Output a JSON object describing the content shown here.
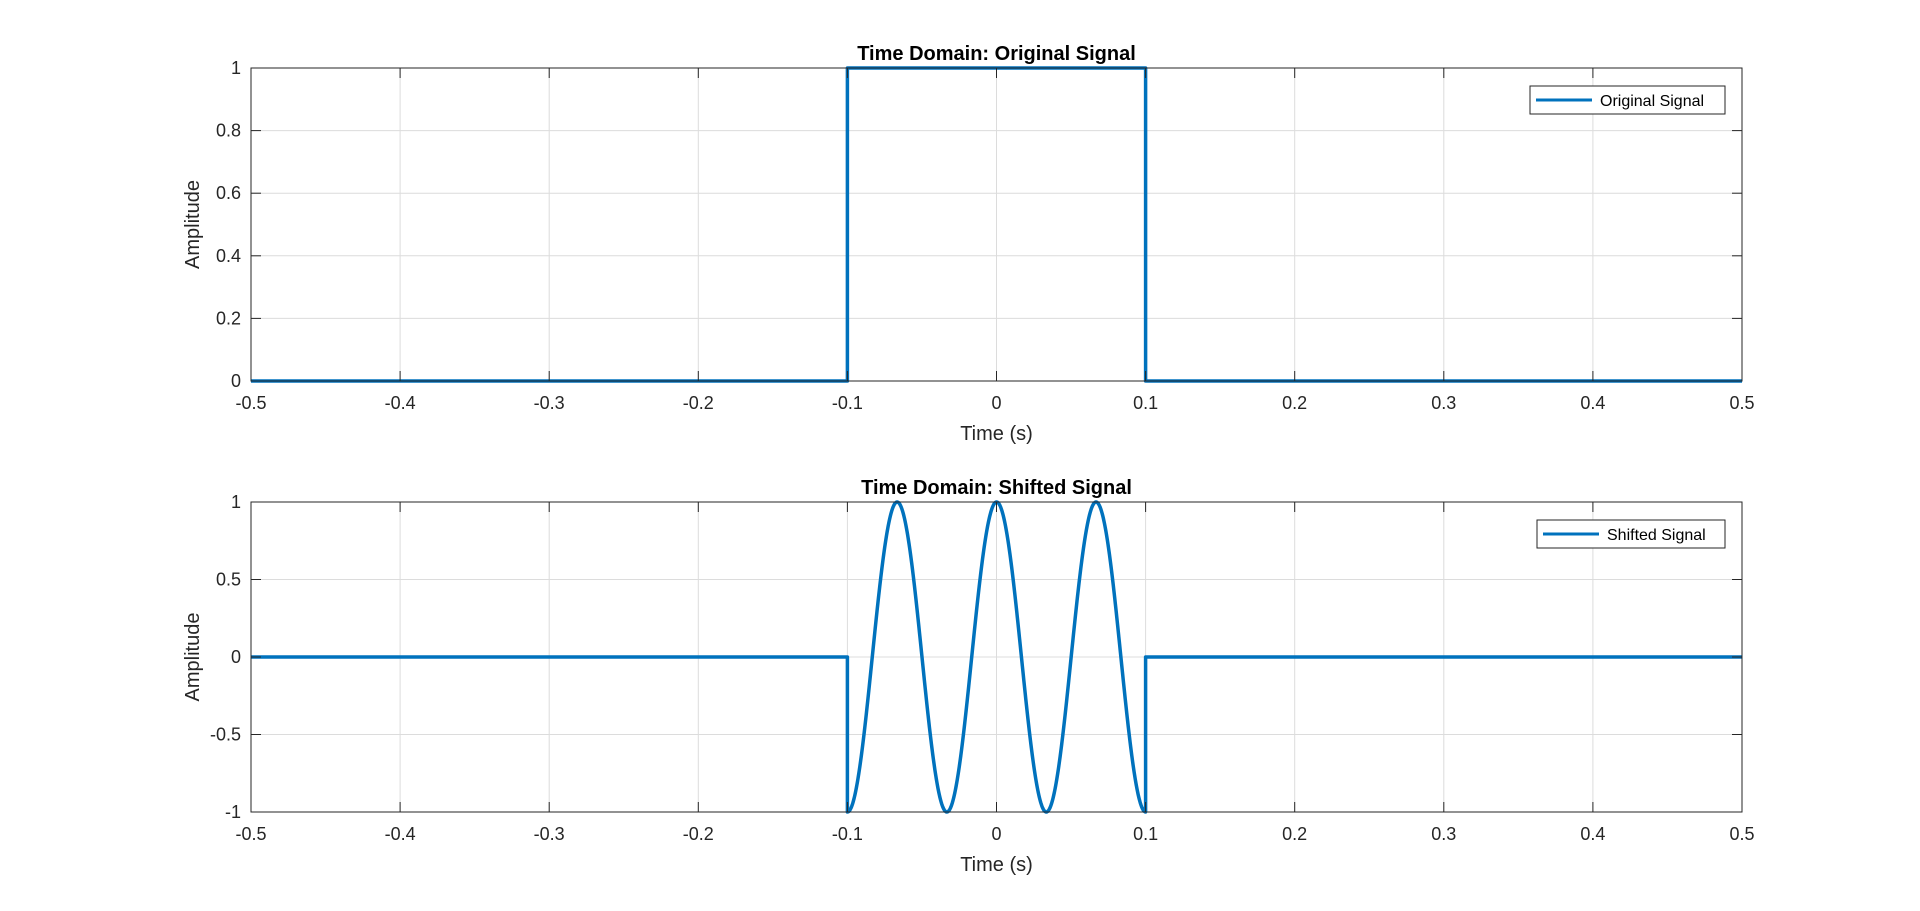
{
  "chart_data": [
    {
      "type": "line",
      "title": "Time Domain: Original Signal",
      "xlabel": "Time (s)",
      "ylabel": "Amplitude",
      "xlim": [
        -0.5,
        0.5
      ],
      "ylim": [
        0,
        1
      ],
      "x_ticks": [
        "-0.5",
        "-0.4",
        "-0.3",
        "-0.2",
        "-0.1",
        "0",
        "0.1",
        "0.2",
        "0.3",
        "0.4",
        "0.5"
      ],
      "y_ticks": [
        "0",
        "0.2",
        "0.4",
        "0.6",
        "0.8",
        "1"
      ],
      "grid": true,
      "legend_position": "top-right",
      "series": [
        {
          "name": "Original Signal",
          "color": "#0072BD",
          "x": [
            -0.5,
            -0.1,
            -0.1,
            0.1,
            0.1,
            0.5
          ],
          "y": [
            0,
            0,
            1,
            1,
            0,
            0
          ]
        }
      ]
    },
    {
      "type": "line",
      "title": "Time Domain: Shifted Signal",
      "xlabel": "Time (s)",
      "ylabel": "Amplitude",
      "xlim": [
        -0.5,
        0.5
      ],
      "ylim": [
        -1,
        1
      ],
      "x_ticks": [
        "-0.5",
        "-0.4",
        "-0.3",
        "-0.2",
        "-0.1",
        "0",
        "0.1",
        "0.2",
        "0.3",
        "0.4",
        "0.5"
      ],
      "y_ticks": [
        "-1",
        "-0.5",
        "0",
        "0.5",
        "1"
      ],
      "grid": true,
      "legend_position": "top-right",
      "series": [
        {
          "name": "Shifted Signal",
          "color": "#0072BD",
          "x": [
            -0.5,
            -0.1,
            -0.1,
            -0.0833,
            -0.0667,
            -0.05,
            -0.0333,
            -0.0167,
            0,
            0.0167,
            0.0333,
            0.05,
            0.0667,
            0.0833,
            0.1,
            0.1,
            0.5
          ],
          "y": [
            0,
            0,
            -1,
            0,
            1,
            0,
            -1,
            0,
            1,
            0,
            -1,
            0,
            1,
            0,
            -1,
            0,
            0
          ]
        }
      ]
    }
  ]
}
